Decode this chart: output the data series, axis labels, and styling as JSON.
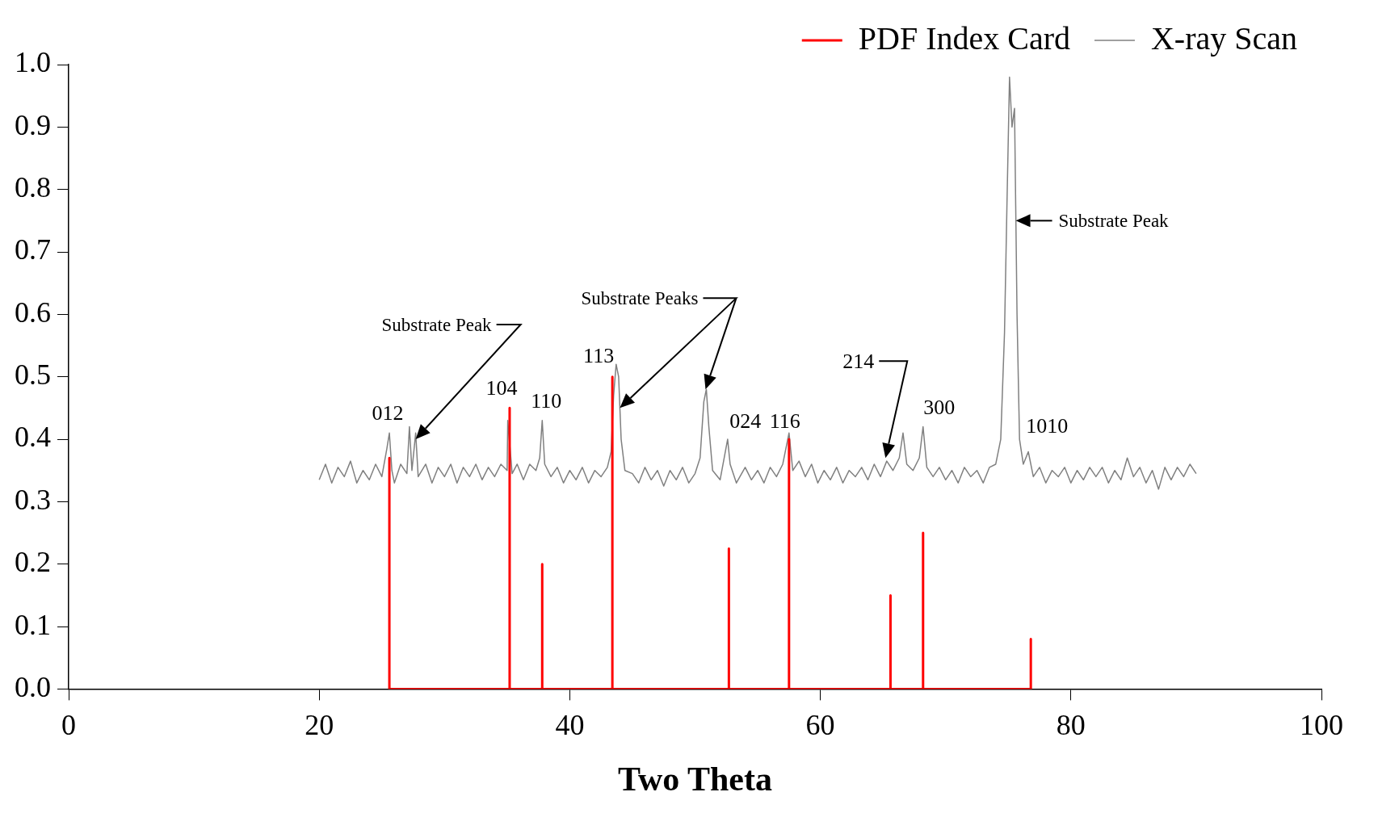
{
  "chart_data": {
    "type": "line",
    "xlabel": "Two Theta",
    "xlim": [
      0,
      100
    ],
    "xticks": [
      0,
      20,
      40,
      60,
      80,
      100
    ],
    "ylim": [
      0,
      1
    ],
    "yticks": [
      {
        "value": 0,
        "label": "0.0"
      },
      {
        "value": 0.1,
        "label": "0.1"
      },
      {
        "value": 0.2,
        "label": "0.2"
      },
      {
        "value": 0.3,
        "label": "0.3"
      },
      {
        "value": 0.4,
        "label": "0.4"
      },
      {
        "value": 0.5,
        "label": "0.5"
      },
      {
        "value": 0.6,
        "label": "0.6"
      },
      {
        "value": 0.7,
        "label": "0.7"
      },
      {
        "value": 0.8,
        "label": "0.8"
      },
      {
        "value": 0.9,
        "label": "0.9"
      },
      {
        "value": 1,
        "label": "1.0"
      }
    ],
    "grid": false,
    "legend": "top right",
    "marker": "none",
    "line_style": "solid",
    "series": [
      {
        "name": "PDF Index Card",
        "color": "#ff0000",
        "x": [
          25.6,
          25.6,
          25.6,
          35.2,
          35.2,
          35.2,
          37.8,
          37.8,
          37.8,
          43.4,
          43.4,
          43.4,
          52.7,
          52.7,
          52.7,
          57.5,
          57.5,
          57.5,
          65.6,
          65.6,
          65.6,
          68.2,
          68.2,
          68.2,
          76.8,
          76.8,
          76.8
        ],
        "values": [
          0,
          0.37,
          0,
          0,
          0.45,
          0,
          0,
          0.2,
          0,
          0,
          0.5,
          0,
          0,
          0.225,
          0,
          0,
          0.4,
          0,
          0,
          0.15,
          0,
          0,
          0.25,
          0,
          0,
          0.08,
          0
        ]
      },
      {
        "name": "X-ray Scan",
        "color": "#808080",
        "x": [
          20,
          20.5,
          21,
          21.5,
          22,
          22.5,
          23,
          23.5,
          24,
          24.5,
          25,
          25.4,
          25.6,
          25.8,
          26,
          26.5,
          27,
          27.2,
          27.4,
          27.7,
          27.9,
          28.5,
          29,
          29.5,
          30,
          30.5,
          31,
          31.5,
          32,
          32.5,
          33,
          33.5,
          34,
          34.5,
          35,
          35.05,
          35.4,
          35.8,
          36.3,
          36.8,
          37.3,
          37.6,
          37.8,
          38,
          38.5,
          39,
          39.5,
          40,
          40.5,
          41,
          41.5,
          42,
          42.5,
          43,
          43.3,
          43.5,
          43.7,
          43.9,
          44.1,
          44.4,
          45,
          45.5,
          46,
          46.5,
          47,
          47.5,
          48,
          48.5,
          49,
          49.5,
          50,
          50.4,
          50.7,
          50.9,
          51.1,
          51.4,
          52,
          52.6,
          52.8,
          53.3,
          54,
          54.5,
          55,
          55.5,
          56,
          56.5,
          57,
          57.5,
          57.8,
          58.3,
          58.8,
          59.3,
          59.8,
          60.3,
          60.8,
          61.3,
          61.8,
          62.3,
          62.8,
          63.3,
          63.8,
          64.3,
          64.8,
          65.3,
          65.8,
          66.3,
          66.6,
          66.9,
          67.4,
          67.9,
          68.2,
          68.5,
          69,
          69.5,
          70,
          70.5,
          71,
          71.5,
          72,
          72.5,
          73,
          73.5,
          74,
          74.4,
          74.7,
          74.9,
          75.1,
          75.3,
          75.5,
          75.7,
          75.9,
          76.2,
          76.6,
          77,
          77.5,
          78,
          78.5,
          79,
          79.5,
          80,
          80.5,
          81,
          81.5,
          82,
          82.5,
          83,
          83.5,
          84,
          84.5,
          85,
          85.5,
          86,
          86.5,
          87,
          87.5,
          88,
          88.5,
          89,
          89.5,
          90
        ],
        "values": [
          0.335,
          0.36,
          0.33,
          0.355,
          0.34,
          0.365,
          0.33,
          0.35,
          0.335,
          0.36,
          0.34,
          0.385,
          0.41,
          0.35,
          0.33,
          0.36,
          0.345,
          0.42,
          0.35,
          0.41,
          0.34,
          0.36,
          0.33,
          0.355,
          0.34,
          0.36,
          0.33,
          0.355,
          0.34,
          0.36,
          0.335,
          0.355,
          0.34,
          0.36,
          0.35,
          0.43,
          0.345,
          0.36,
          0.335,
          0.36,
          0.35,
          0.37,
          0.43,
          0.36,
          0.34,
          0.355,
          0.33,
          0.35,
          0.335,
          0.355,
          0.33,
          0.35,
          0.34,
          0.355,
          0.38,
          0.47,
          0.52,
          0.5,
          0.4,
          0.35,
          0.345,
          0.33,
          0.355,
          0.335,
          0.35,
          0.325,
          0.35,
          0.335,
          0.355,
          0.33,
          0.345,
          0.37,
          0.46,
          0.48,
          0.42,
          0.35,
          0.335,
          0.4,
          0.36,
          0.33,
          0.355,
          0.335,
          0.35,
          0.33,
          0.355,
          0.34,
          0.36,
          0.41,
          0.35,
          0.365,
          0.34,
          0.36,
          0.33,
          0.35,
          0.335,
          0.355,
          0.33,
          0.35,
          0.34,
          0.355,
          0.335,
          0.36,
          0.34,
          0.365,
          0.35,
          0.37,
          0.41,
          0.36,
          0.35,
          0.37,
          0.42,
          0.355,
          0.34,
          0.355,
          0.335,
          0.35,
          0.33,
          0.355,
          0.34,
          0.35,
          0.33,
          0.355,
          0.36,
          0.4,
          0.57,
          0.78,
          0.98,
          0.9,
          0.93,
          0.6,
          0.4,
          0.36,
          0.38,
          0.34,
          0.355,
          0.33,
          0.35,
          0.34,
          0.355,
          0.33,
          0.35,
          0.335,
          0.355,
          0.34,
          0.355,
          0.33,
          0.35,
          0.335,
          0.37,
          0.34,
          0.355,
          0.33,
          0.35,
          0.32,
          0.355,
          0.335,
          0.355,
          0.34,
          0.36,
          0.345
        ]
      }
    ],
    "annotations": [
      {
        "text": "012",
        "x": 25.6,
        "y": 0.41
      },
      {
        "text": "104",
        "x": 35.2,
        "y": 0.45
      },
      {
        "text": "110",
        "x": 37.8,
        "y": 0.43
      },
      {
        "text": "113",
        "x": 43.4,
        "y": 0.5
      },
      {
        "text": "024",
        "x": 52.6,
        "y": 0.4
      },
      {
        "text": "116",
        "x": 57.5,
        "y": 0.4
      },
      {
        "text": "300",
        "x": 68.2,
        "y": 0.42
      },
      "1010",
      "Substrate Peak",
      "Substrate Peaks",
      "214",
      "Substrate Peak"
    ]
  }
}
